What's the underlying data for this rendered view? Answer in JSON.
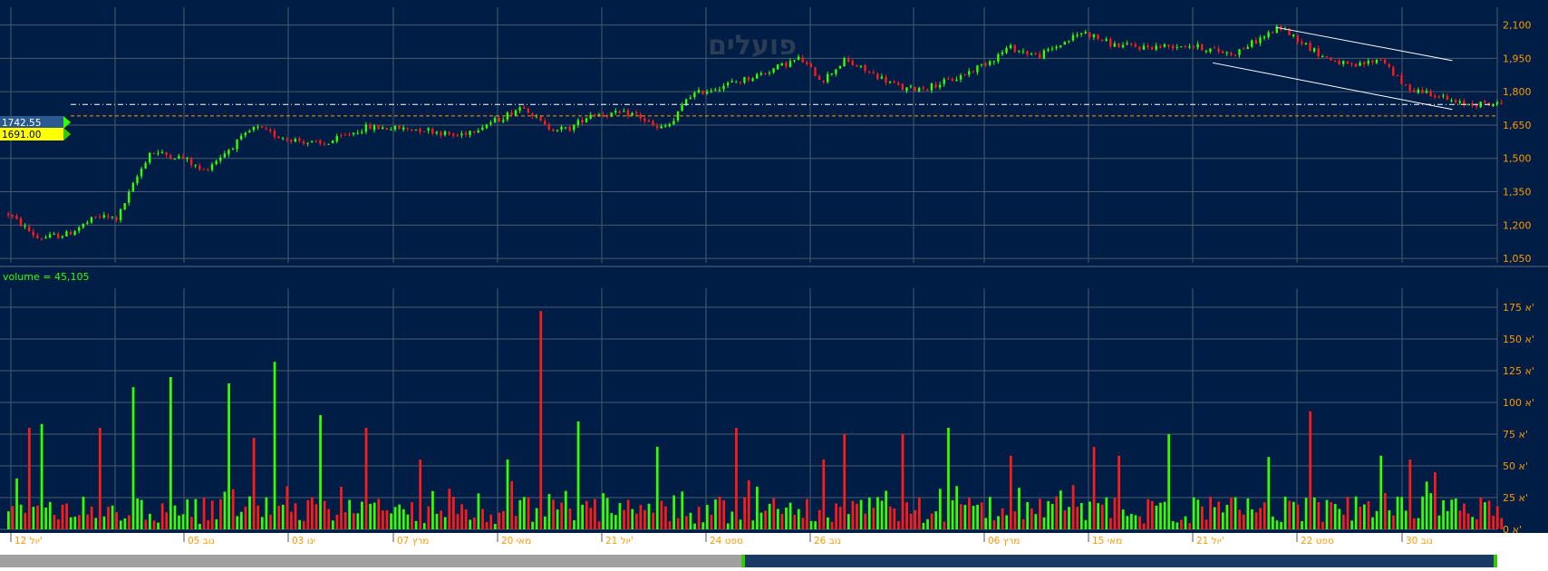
{
  "watermark": "פועלים",
  "price_tags": {
    "current": "1742.55",
    "reference": "1691.00"
  },
  "volume_label": "volume = 45,105",
  "colors": {
    "background": "#001e45",
    "grid": "#4a5a6e",
    "up": "#33ff00",
    "down": "#ff1a1a",
    "axis_text": "#ff9900",
    "date_text": "#ff9900",
    "current_tag": "#2a5a90",
    "reference_tag": "#ffff00",
    "scrollbar_track": "#a0a0a0",
    "scrollbar_thumb": "#1a3a66"
  },
  "chart_data": [
    {
      "type": "candlestick",
      "yticks": [
        "1,050",
        "1,200",
        "1,350",
        "1,500",
        "1,650",
        "1,800",
        "1,950",
        "2,100"
      ],
      "ylim": [
        1030,
        2180
      ],
      "reference_lines": [
        {
          "value": 1742.55,
          "label": "1742.55",
          "style": "dash-dot",
          "color": "#ffffff"
        },
        {
          "value": 1691.0,
          "label": "1691.00",
          "style": "dashed",
          "color": "#ff9900"
        }
      ],
      "trendlines": [
        {
          "x1": 0.852,
          "y1": 2090,
          "x2": 0.97,
          "y2": 1940
        },
        {
          "x1": 0.81,
          "y1": 1930,
          "x2": 0.97,
          "y2": 1720
        }
      ],
      "price_path": [
        [
          0.0,
          1250
        ],
        [
          0.02,
          1140
        ],
        [
          0.04,
          1160
        ],
        [
          0.06,
          1240
        ],
        [
          0.073,
          1230
        ],
        [
          0.085,
          1400
        ],
        [
          0.095,
          1530
        ],
        [
          0.118,
          1500
        ],
        [
          0.13,
          1440
        ],
        [
          0.165,
          1640
        ],
        [
          0.18,
          1600
        ],
        [
          0.21,
          1560
        ],
        [
          0.24,
          1640
        ],
        [
          0.28,
          1630
        ],
        [
          0.3,
          1600
        ],
        [
          0.33,
          1680
        ],
        [
          0.345,
          1740
        ],
        [
          0.36,
          1640
        ],
        [
          0.375,
          1630
        ],
        [
          0.39,
          1700
        ],
        [
          0.42,
          1700
        ],
        [
          0.435,
          1630
        ],
        [
          0.445,
          1660
        ],
        [
          0.455,
          1780
        ],
        [
          0.48,
          1830
        ],
        [
          0.5,
          1870
        ],
        [
          0.53,
          1950
        ],
        [
          0.545,
          1850
        ],
        [
          0.56,
          1940
        ],
        [
          0.585,
          1860
        ],
        [
          0.6,
          1810
        ],
        [
          0.615,
          1820
        ],
        [
          0.635,
          1860
        ],
        [
          0.66,
          1950
        ],
        [
          0.67,
          2000
        ],
        [
          0.69,
          1960
        ],
        [
          0.72,
          2070
        ],
        [
          0.74,
          2010
        ],
        [
          0.76,
          2000
        ],
        [
          0.79,
          2010
        ],
        [
          0.82,
          1970
        ],
        [
          0.852,
          2090
        ],
        [
          0.88,
          1960
        ],
        [
          0.9,
          1910
        ],
        [
          0.92,
          1950
        ],
        [
          0.935,
          1820
        ],
        [
          0.955,
          1790
        ],
        [
          0.97,
          1745
        ]
      ]
    },
    {
      "type": "bar",
      "ylabel": "volume",
      "yticks": [
        "0 א'",
        "25 א'",
        "50 א'",
        "75 א'",
        "100 א'",
        "125 א'",
        "150 א'",
        "175 א'"
      ],
      "ylim": [
        0,
        190
      ],
      "spikes": [
        [
          0.013,
          80,
          "down"
        ],
        [
          0.022,
          83,
          "up"
        ],
        [
          0.06,
          80,
          "down"
        ],
        [
          0.083,
          112,
          "up"
        ],
        [
          0.108,
          120,
          "up"
        ],
        [
          0.148,
          115,
          "up"
        ],
        [
          0.165,
          72,
          "down"
        ],
        [
          0.178,
          132,
          "up"
        ],
        [
          0.208,
          90,
          "up"
        ],
        [
          0.24,
          80,
          "down"
        ],
        [
          0.275,
          55,
          "down"
        ],
        [
          0.335,
          55,
          "up"
        ],
        [
          0.357,
          172,
          "down"
        ],
        [
          0.382,
          85,
          "up"
        ],
        [
          0.435,
          65,
          "up"
        ],
        [
          0.487,
          80,
          "down"
        ],
        [
          0.545,
          55,
          "down"
        ],
        [
          0.56,
          75,
          "down"
        ],
        [
          0.598,
          75,
          "down"
        ],
        [
          0.63,
          80,
          "up"
        ],
        [
          0.67,
          58,
          "down"
        ],
        [
          0.727,
          65,
          "down"
        ],
        [
          0.745,
          58,
          "down"
        ],
        [
          0.776,
          75,
          "up"
        ],
        [
          0.843,
          57,
          "up"
        ],
        [
          0.873,
          93,
          "down"
        ],
        [
          0.92,
          58,
          "up"
        ],
        [
          0.94,
          55,
          "down"
        ],
        [
          0.955,
          45,
          "down"
        ]
      ]
    }
  ],
  "x_dates": [
    "12 יול'",
    "05 נוב",
    "03 ינו",
    "07 מרץ",
    "20 מאי",
    "21 יול'",
    "24 ספט",
    "26 נוב",
    "06 מרץ",
    "15 מאי",
    "21 יול'",
    "22 ספט",
    "30 נוב"
  ]
}
